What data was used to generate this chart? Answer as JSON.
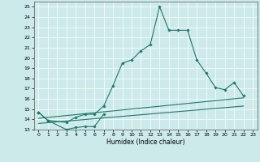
{
  "xlabel": "Humidex (Indice chaleur)",
  "background_color": "#cceaea",
  "line_color": "#1a7a6a",
  "series1_x": [
    0,
    1,
    3,
    4,
    5,
    6,
    7,
    8,
    9,
    10,
    11,
    12,
    13,
    14,
    15,
    16,
    17,
    18,
    19,
    20,
    21,
    22
  ],
  "series1_y": [
    14.7,
    13.9,
    13.7,
    14.2,
    14.5,
    14.5,
    15.3,
    17.3,
    19.5,
    19.8,
    20.7,
    21.3,
    25.0,
    22.7,
    22.7,
    22.7,
    19.8,
    18.5,
    17.1,
    16.9,
    17.6,
    16.3
  ],
  "series2_x": [
    0,
    1,
    3,
    4,
    5,
    6,
    7
  ],
  "series2_y": [
    14.7,
    13.9,
    13.0,
    13.2,
    13.3,
    13.3,
    14.5
  ],
  "line1_x": [
    0,
    22
  ],
  "line1_y": [
    14.1,
    16.1
  ],
  "line2_x": [
    0,
    22
  ],
  "line2_y": [
    13.6,
    15.3
  ],
  "ylim": [
    13,
    25.5
  ],
  "xlim": [
    -0.5,
    23.5
  ],
  "yticks": [
    13,
    14,
    15,
    16,
    17,
    18,
    19,
    20,
    21,
    22,
    23,
    24,
    25
  ],
  "xticks": [
    0,
    1,
    2,
    3,
    4,
    5,
    6,
    7,
    8,
    9,
    10,
    11,
    12,
    13,
    14,
    15,
    16,
    17,
    18,
    19,
    20,
    21,
    22,
    23
  ],
  "xlabel_fontsize": 5.5,
  "tick_fontsize": 4.5,
  "grid_color": "#ffffff",
  "marker": "D",
  "markersize": 1.8,
  "linewidth": 0.8
}
